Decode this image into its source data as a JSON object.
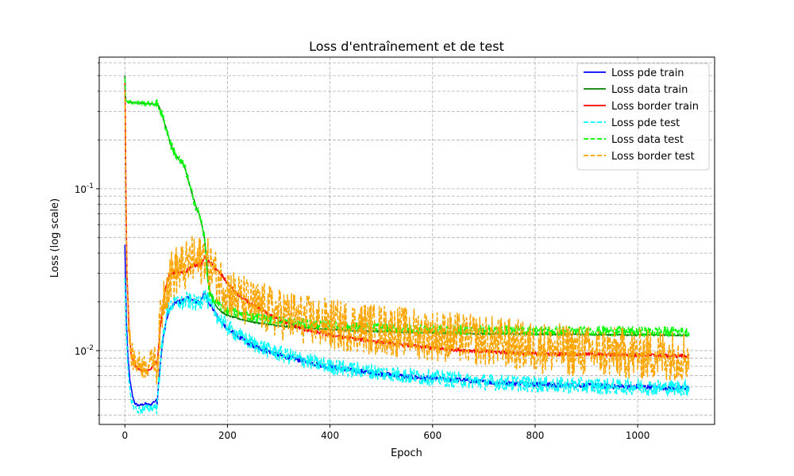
{
  "chart_data": {
    "type": "line",
    "title": "Loss d'entraînement et de test",
    "xlabel": "Epoch",
    "ylabel": "Loss (log scale)",
    "yscale": "log",
    "xlim": [
      -50,
      1150
    ],
    "ylim": [
      0.0035,
      0.65
    ],
    "x_ticks": [
      0,
      200,
      400,
      600,
      800,
      1000
    ],
    "y_major_ticks": [
      0.01,
      0.1
    ],
    "y_major_tick_labels": [
      "10^-2",
      "10^-1"
    ],
    "y_minor_ticks": [
      0.004,
      0.005,
      0.006,
      0.007,
      0.008,
      0.009,
      0.02,
      0.03,
      0.04,
      0.05,
      0.06,
      0.07,
      0.08,
      0.09,
      0.2,
      0.3,
      0.4,
      0.5,
      0.6
    ],
    "grid": true,
    "legend_position": "top-right",
    "series": [
      {
        "name": "Loss pde train",
        "color": "#0000ff",
        "style": "solid",
        "x": [
          0,
          1,
          3,
          6,
          10,
          15,
          20,
          25,
          30,
          40,
          50,
          55,
          60,
          63,
          65,
          70,
          75,
          80,
          85,
          90,
          100,
          110,
          120,
          130,
          140,
          150,
          155,
          160,
          170,
          180,
          190,
          200,
          220,
          250,
          300,
          350,
          400,
          450,
          500,
          550,
          600,
          650,
          700,
          750,
          800,
          850,
          900,
          950,
          1000,
          1050,
          1100
        ],
        "y": [
          0.045,
          0.03,
          0.015,
          0.009,
          0.0065,
          0.0052,
          0.0047,
          0.0046,
          0.0046,
          0.0047,
          0.0046,
          0.0048,
          0.0049,
          0.0048,
          0.006,
          0.009,
          0.012,
          0.015,
          0.017,
          0.0185,
          0.02,
          0.02,
          0.021,
          0.0205,
          0.02,
          0.0205,
          0.023,
          0.021,
          0.0185,
          0.0162,
          0.0148,
          0.0137,
          0.0122,
          0.0107,
          0.0094,
          0.0086,
          0.0079,
          0.0075,
          0.0072,
          0.0069,
          0.0067,
          0.0066,
          0.0064,
          0.0063,
          0.0062,
          0.0061,
          0.0061,
          0.006,
          0.006,
          0.0059,
          0.0059
        ],
        "noise": 0.015
      },
      {
        "name": "Loss data train",
        "color": "#008000",
        "style": "solid",
        "x": [
          0,
          1,
          2,
          5,
          10,
          20,
          30,
          40,
          50,
          60,
          65,
          70,
          80,
          90,
          100,
          110,
          115,
          120,
          130,
          140,
          145,
          150,
          155,
          158,
          160,
          162,
          165,
          170,
          180,
          190,
          200,
          220,
          250,
          300,
          350,
          400,
          450,
          500,
          550,
          600,
          650,
          700,
          750,
          800,
          850,
          900,
          950,
          1000,
          1050,
          1100
        ],
        "y": [
          0.5,
          0.38,
          0.35,
          0.345,
          0.342,
          0.34,
          0.338,
          0.336,
          0.335,
          0.333,
          0.33,
          0.3,
          0.24,
          0.185,
          0.16,
          0.145,
          0.14,
          0.125,
          0.095,
          0.075,
          0.07,
          0.06,
          0.05,
          0.04,
          0.034,
          0.028,
          0.024,
          0.021,
          0.0185,
          0.0172,
          0.0165,
          0.0158,
          0.015,
          0.0142,
          0.0138,
          0.0135,
          0.0133,
          0.0131,
          0.013,
          0.0129,
          0.0128,
          0.0127,
          0.0127,
          0.0126,
          0.0126,
          0.0126,
          0.0125,
          0.0125,
          0.0125,
          0.0124
        ],
        "noise": 0.005
      },
      {
        "name": "Loss border train",
        "color": "#ff0000",
        "style": "solid",
        "x": [
          0,
          1,
          2,
          4,
          8,
          12,
          20,
          30,
          40,
          50,
          55,
          60,
          63,
          65,
          70,
          75,
          80,
          85,
          90,
          100,
          110,
          120,
          130,
          140,
          150,
          155,
          160,
          170,
          180,
          190,
          200,
          220,
          250,
          300,
          350,
          400,
          450,
          500,
          550,
          600,
          650,
          700,
          750,
          800,
          850,
          900,
          950,
          1000,
          1050,
          1100
        ],
        "y": [
          0.45,
          0.25,
          0.1,
          0.03,
          0.014,
          0.0095,
          0.008,
          0.0076,
          0.0075,
          0.0077,
          0.008,
          0.0085,
          0.008,
          0.01,
          0.015,
          0.02,
          0.025,
          0.028,
          0.03,
          0.031,
          0.03,
          0.031,
          0.033,
          0.034,
          0.034,
          0.038,
          0.036,
          0.034,
          0.031,
          0.029,
          0.026,
          0.022,
          0.019,
          0.0155,
          0.0135,
          0.0125,
          0.0118,
          0.0113,
          0.0108,
          0.0104,
          0.0101,
          0.0099,
          0.0097,
          0.0096,
          0.0095,
          0.0095,
          0.0094,
          0.0094,
          0.0093,
          0.0093
        ],
        "noise": 0.012
      },
      {
        "name": "Loss pde test",
        "color": "#00ffff",
        "style": "dashed",
        "x": [
          0,
          1,
          3,
          6,
          10,
          15,
          20,
          25,
          30,
          40,
          50,
          55,
          60,
          63,
          65,
          70,
          75,
          80,
          85,
          90,
          100,
          110,
          120,
          130,
          140,
          150,
          155,
          160,
          170,
          180,
          190,
          200,
          220,
          250,
          300,
          350,
          400,
          450,
          500,
          550,
          600,
          650,
          700,
          750,
          800,
          850,
          900,
          950,
          1000,
          1050,
          1100
        ],
        "y": [
          0.028,
          0.022,
          0.012,
          0.0075,
          0.0055,
          0.0047,
          0.0044,
          0.0043,
          0.0043,
          0.0044,
          0.0044,
          0.0045,
          0.0046,
          0.0045,
          0.0058,
          0.009,
          0.0125,
          0.016,
          0.018,
          0.019,
          0.02,
          0.0195,
          0.0205,
          0.02,
          0.0195,
          0.0205,
          0.0225,
          0.0205,
          0.0185,
          0.0165,
          0.015,
          0.014,
          0.0125,
          0.011,
          0.0096,
          0.0087,
          0.008,
          0.0076,
          0.0073,
          0.007,
          0.0068,
          0.0066,
          0.0064,
          0.0063,
          0.0062,
          0.0061,
          0.0061,
          0.006,
          0.006,
          0.0059,
          0.0059
        ],
        "noise": 0.05
      },
      {
        "name": "Loss data test",
        "color": "#00ff00",
        "style": "dashed",
        "x": [
          0,
          1,
          2,
          5,
          10,
          20,
          30,
          40,
          50,
          60,
          65,
          70,
          80,
          90,
          100,
          110,
          115,
          120,
          130,
          140,
          145,
          150,
          155,
          158,
          160,
          162,
          165,
          170,
          180,
          190,
          200,
          220,
          250,
          300,
          350,
          400,
          450,
          500,
          550,
          600,
          650,
          700,
          750,
          800,
          850,
          900,
          950,
          1000,
          1050,
          1100
        ],
        "y": [
          0.48,
          0.37,
          0.35,
          0.345,
          0.342,
          0.34,
          0.338,
          0.336,
          0.335,
          0.333,
          0.33,
          0.3,
          0.24,
          0.185,
          0.16,
          0.145,
          0.14,
          0.125,
          0.095,
          0.075,
          0.07,
          0.06,
          0.05,
          0.04,
          0.032,
          0.026,
          0.023,
          0.021,
          0.0195,
          0.0185,
          0.0178,
          0.017,
          0.0162,
          0.0153,
          0.0147,
          0.0143,
          0.014,
          0.0138,
          0.0136,
          0.0135,
          0.0134,
          0.0134,
          0.0133,
          0.0133,
          0.0132,
          0.0132,
          0.0132,
          0.0131,
          0.0131,
          0.0131
        ],
        "noise": 0.03
      },
      {
        "name": "Loss border test",
        "color": "#ffa500",
        "style": "dashed",
        "x": [
          0,
          1,
          2,
          4,
          8,
          12,
          20,
          30,
          40,
          50,
          55,
          60,
          63,
          65,
          70,
          75,
          80,
          85,
          90,
          100,
          110,
          120,
          130,
          140,
          150,
          155,
          160,
          170,
          180,
          190,
          200,
          220,
          250,
          300,
          350,
          400,
          450,
          500,
          550,
          600,
          650,
          700,
          750,
          800,
          850,
          900,
          950,
          1000,
          1050,
          1100
        ],
        "y": [
          0.4,
          0.22,
          0.09,
          0.028,
          0.013,
          0.0095,
          0.0085,
          0.0082,
          0.008,
          0.0085,
          0.009,
          0.009,
          0.0085,
          0.01,
          0.016,
          0.021,
          0.025,
          0.027,
          0.029,
          0.031,
          0.032,
          0.033,
          0.036,
          0.035,
          0.036,
          0.04,
          0.035,
          0.032,
          0.028,
          0.026,
          0.024,
          0.021,
          0.019,
          0.017,
          0.0155,
          0.0145,
          0.014,
          0.0135,
          0.013,
          0.0125,
          0.012,
          0.0115,
          0.011,
          0.0105,
          0.0102,
          0.0099,
          0.0097,
          0.0095,
          0.0094,
          0.0093
        ],
        "noise": 0.16
      }
    ]
  }
}
